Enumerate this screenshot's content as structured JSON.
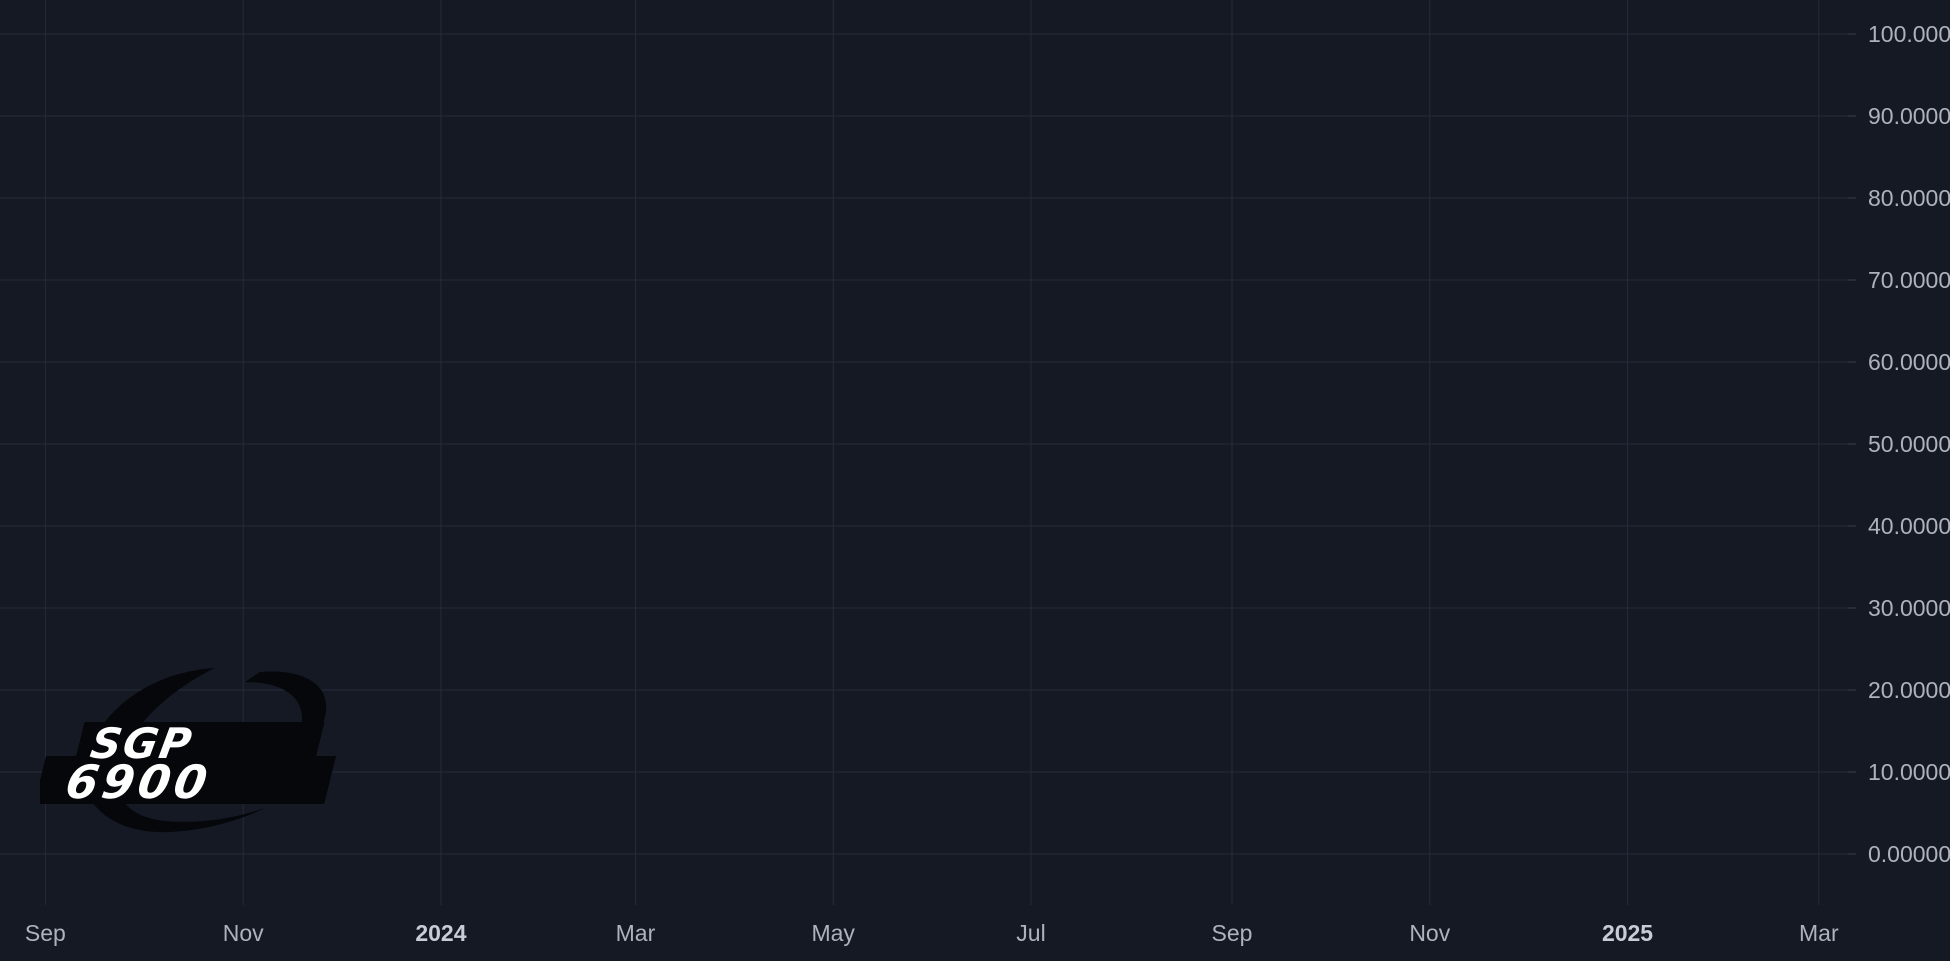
{
  "chart_data": {
    "type": "line",
    "title": "",
    "xlabel": "",
    "ylabel": "",
    "x_range": [
      "2023-08-18",
      "2025-03-10"
    ],
    "ylim": [
      0,
      100
    ],
    "grid": true,
    "y_ticks": [
      {
        "value": 100,
        "label": "100.000"
      },
      {
        "value": 90,
        "label": "90.0000"
      },
      {
        "value": 80,
        "label": "80.0000"
      },
      {
        "value": 70,
        "label": "70.0000"
      },
      {
        "value": 60,
        "label": "60.0000"
      },
      {
        "value": 50,
        "label": "50.0000"
      },
      {
        "value": 40,
        "label": "40.0000"
      },
      {
        "value": 30,
        "label": "30.0000"
      },
      {
        "value": 20,
        "label": "20.0000"
      },
      {
        "value": 10,
        "label": "10.0000"
      },
      {
        "value": 0,
        "label": "0.00000"
      }
    ],
    "x_ticks": [
      {
        "date": "2023-09-01",
        "label": "Sep",
        "major": false
      },
      {
        "date": "2023-11-01",
        "label": "Nov",
        "major": false
      },
      {
        "date": "2024-01-01",
        "label": "2024",
        "major": true
      },
      {
        "date": "2024-03-01",
        "label": "Mar",
        "major": false
      },
      {
        "date": "2024-05-01",
        "label": "May",
        "major": false
      },
      {
        "date": "2024-07-01",
        "label": "Jul",
        "major": false
      },
      {
        "date": "2024-09-01",
        "label": "Sep",
        "major": false
      },
      {
        "date": "2024-11-01",
        "label": "Nov",
        "major": false
      },
      {
        "date": "2025-01-01",
        "label": "2025",
        "major": true
      },
      {
        "date": "2025-03-01",
        "label": "Mar",
        "major": false
      }
    ],
    "series": []
  },
  "logo": {
    "line1": "SGP",
    "line2": "6900",
    "icon": "sgp6900-logo"
  },
  "colors": {
    "background": "#151924",
    "grid": "#262b38",
    "axis_text": "#aeb2bd"
  }
}
